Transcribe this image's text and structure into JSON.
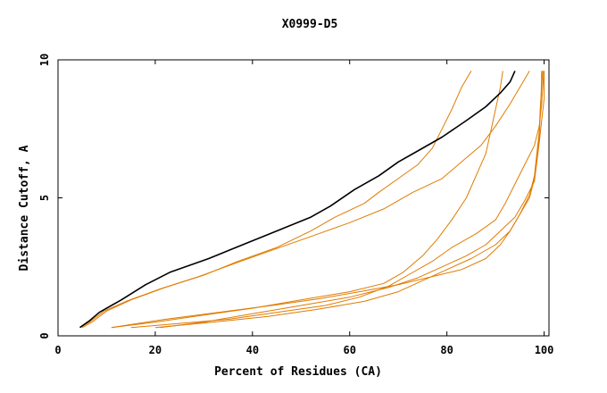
{
  "chart_data": {
    "type": "line",
    "title": "X0999-D5",
    "xlabel": "Percent of Residues (CA)",
    "ylabel": "Distance Cutoff, A",
    "xlim": [
      0,
      101
    ],
    "ylim": [
      0,
      10
    ],
    "xticks": [
      0,
      20,
      40,
      60,
      80,
      100
    ],
    "yticks": [
      0,
      5,
      10
    ],
    "grid": false,
    "legend": "none",
    "colors": {
      "highlight": "#000000",
      "others": "#e07b00",
      "frame": "#000000"
    },
    "series": [
      {
        "highlight": true,
        "points": [
          [
            4.5,
            0.3
          ],
          [
            6.5,
            0.55
          ],
          [
            8.5,
            0.85
          ],
          [
            13,
            1.3
          ],
          [
            18,
            1.85
          ],
          [
            23,
            2.3
          ],
          [
            31,
            2.8
          ],
          [
            38,
            3.3
          ],
          [
            45,
            3.8
          ],
          [
            52,
            4.3
          ],
          [
            56,
            4.7
          ],
          [
            61,
            5.3
          ],
          [
            66,
            5.8
          ],
          [
            70,
            6.3
          ],
          [
            74,
            6.7
          ],
          [
            79,
            7.2
          ],
          [
            84,
            7.8
          ],
          [
            88,
            8.3
          ],
          [
            91,
            8.8
          ],
          [
            93,
            9.2
          ],
          [
            94,
            9.6
          ]
        ]
      },
      {
        "highlight": false,
        "points": [
          [
            5,
            0.3
          ],
          [
            7,
            0.5
          ],
          [
            10,
            0.9
          ],
          [
            15,
            1.3
          ],
          [
            22,
            1.75
          ],
          [
            30,
            2.2
          ],
          [
            37,
            2.7
          ],
          [
            45,
            3.2
          ],
          [
            52,
            3.8
          ],
          [
            57,
            4.3
          ],
          [
            63,
            4.8
          ],
          [
            66,
            5.2
          ],
          [
            70,
            5.7
          ],
          [
            74,
            6.2
          ],
          [
            77,
            6.8
          ],
          [
            79,
            7.5
          ],
          [
            81,
            8.2
          ],
          [
            83,
            9.0
          ],
          [
            85,
            9.6
          ]
        ]
      },
      {
        "highlight": false,
        "points": [
          [
            4.5,
            0.3
          ],
          [
            6.5,
            0.5
          ],
          [
            9.5,
            0.9
          ],
          [
            14,
            1.25
          ],
          [
            21,
            1.7
          ],
          [
            29,
            2.15
          ],
          [
            36,
            2.6
          ],
          [
            44,
            3.1
          ],
          [
            52,
            3.6
          ],
          [
            60,
            4.1
          ],
          [
            67,
            4.6
          ],
          [
            73,
            5.2
          ],
          [
            79,
            5.7
          ],
          [
            83,
            6.3
          ],
          [
            87,
            6.9
          ],
          [
            90,
            7.6
          ],
          [
            93,
            8.4
          ],
          [
            95,
            9.0
          ],
          [
            97,
            9.6
          ]
        ]
      },
      {
        "highlight": false,
        "points": [
          [
            11,
            0.3
          ],
          [
            20,
            0.5
          ],
          [
            30,
            0.75
          ],
          [
            40,
            1.0
          ],
          [
            50,
            1.3
          ],
          [
            60,
            1.6
          ],
          [
            67,
            1.9
          ],
          [
            71,
            2.3
          ],
          [
            75,
            2.9
          ],
          [
            78,
            3.5
          ],
          [
            81,
            4.2
          ],
          [
            84,
            5.0
          ],
          [
            86,
            5.8
          ],
          [
            88,
            6.6
          ],
          [
            89,
            7.4
          ],
          [
            90,
            8.2
          ],
          [
            91,
            9.0
          ],
          [
            91.5,
            9.6
          ]
        ]
      },
      {
        "highlight": false,
        "points": [
          [
            15,
            0.3
          ],
          [
            25,
            0.45
          ],
          [
            35,
            0.6
          ],
          [
            45,
            0.85
          ],
          [
            55,
            1.1
          ],
          [
            62,
            1.4
          ],
          [
            68,
            1.8
          ],
          [
            72,
            2.2
          ],
          [
            77,
            2.7
          ],
          [
            81,
            3.2
          ],
          [
            86,
            3.7
          ],
          [
            90,
            4.2
          ],
          [
            92,
            4.8
          ],
          [
            94,
            5.5
          ],
          [
            96,
            6.2
          ],
          [
            98,
            6.9
          ],
          [
            99,
            7.6
          ],
          [
            99.5,
            8.4
          ],
          [
            99.8,
            9.2
          ],
          [
            99.9,
            9.6
          ]
        ]
      },
      {
        "highlight": false,
        "points": [
          [
            20,
            0.3
          ],
          [
            32,
            0.5
          ],
          [
            43,
            0.7
          ],
          [
            53,
            0.95
          ],
          [
            63,
            1.25
          ],
          [
            70,
            1.6
          ],
          [
            75,
            2.0
          ],
          [
            80,
            2.4
          ],
          [
            85,
            2.8
          ],
          [
            90,
            3.3
          ],
          [
            93,
            3.8
          ],
          [
            95,
            4.4
          ],
          [
            97,
            5.1
          ],
          [
            98,
            5.8
          ],
          [
            98.5,
            6.6
          ],
          [
            99,
            7.4
          ],
          [
            99.2,
            8.2
          ],
          [
            99.5,
            9.0
          ],
          [
            99.7,
            9.6
          ]
        ]
      },
      {
        "highlight": false,
        "points": [
          [
            11,
            0.3
          ],
          [
            22,
            0.6
          ],
          [
            33,
            0.85
          ],
          [
            44,
            1.1
          ],
          [
            54,
            1.35
          ],
          [
            62,
            1.6
          ],
          [
            70,
            1.85
          ],
          [
            77,
            2.15
          ],
          [
            83,
            2.4
          ],
          [
            88,
            2.8
          ],
          [
            91,
            3.3
          ],
          [
            93,
            3.8
          ],
          [
            95,
            4.4
          ],
          [
            97,
            5.0
          ],
          [
            98,
            5.7
          ],
          [
            98.5,
            6.4
          ],
          [
            99,
            7.2
          ],
          [
            99.2,
            8.0
          ],
          [
            99.4,
            8.8
          ],
          [
            99.5,
            9.6
          ]
        ]
      },
      {
        "highlight": false,
        "points": [
          [
            21,
            0.3
          ],
          [
            30,
            0.5
          ],
          [
            40,
            0.8
          ],
          [
            50,
            1.1
          ],
          [
            60,
            1.4
          ],
          [
            68,
            1.75
          ],
          [
            74,
            2.1
          ],
          [
            79,
            2.5
          ],
          [
            84,
            2.9
          ],
          [
            88,
            3.3
          ],
          [
            91,
            3.8
          ],
          [
            94,
            4.3
          ],
          [
            96,
            4.9
          ],
          [
            98,
            5.6
          ],
          [
            98.5,
            6.3
          ],
          [
            99,
            7.0
          ],
          [
            99.5,
            7.8
          ],
          [
            100,
            8.6
          ],
          [
            100,
            9.6
          ]
        ]
      }
    ]
  }
}
